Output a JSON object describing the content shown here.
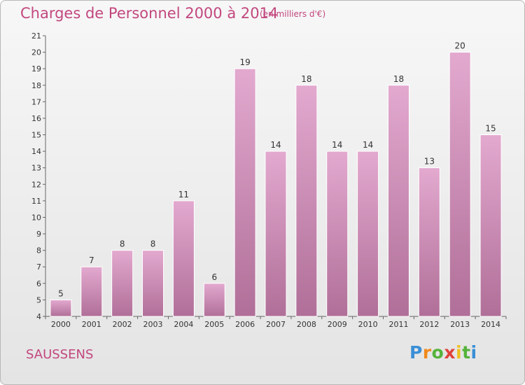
{
  "title": "Charges de Personnel 2000 à 2014",
  "unit_note": "(en milliers d'€)",
  "commune": "SAUSSENS",
  "logo": {
    "letters": [
      "P",
      "r",
      "o",
      "x",
      "i",
      "t",
      "i"
    ],
    "colors": [
      "#3a8fd6",
      "#f08a1c",
      "#55b33b",
      "#e0413a",
      "#f0c020",
      "#55b33b",
      "#3a8fd6"
    ]
  },
  "colors": {
    "title": "#c2477e",
    "bar_light": "#e3a9cf",
    "bar_dark": "#b06f98"
  },
  "chart_data": {
    "type": "bar",
    "title": "Charges de Personnel 2000 à 2014",
    "subtitle": "(en milliers d'€)",
    "categories": [
      "2000",
      "2001",
      "2002",
      "2003",
      "2004",
      "2005",
      "2006",
      "2007",
      "2008",
      "2009",
      "2010",
      "2011",
      "2012",
      "2013",
      "2014"
    ],
    "values": [
      5,
      7,
      8,
      8,
      11,
      6,
      19,
      14,
      18,
      14,
      14,
      18,
      13,
      20,
      15
    ],
    "ylim": [
      4,
      21
    ],
    "yticks": [
      4,
      5,
      6,
      7,
      8,
      9,
      10,
      11,
      12,
      13,
      14,
      15,
      16,
      17,
      18,
      19,
      20,
      21
    ],
    "grid": false,
    "data_labels": true
  }
}
